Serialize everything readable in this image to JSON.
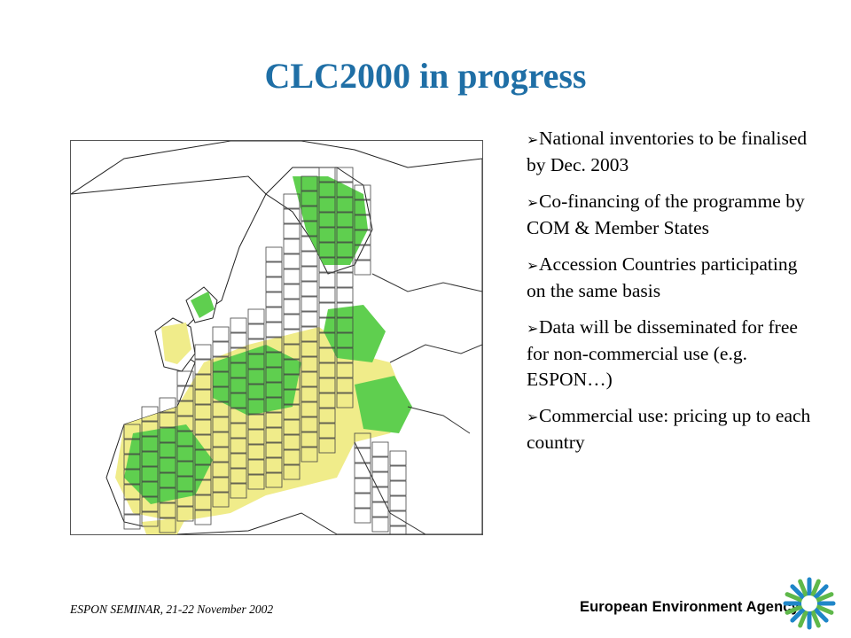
{
  "slide": {
    "title": "CLC2000 in progress",
    "bullets": [
      "National inventories to be finalised by Dec. 2003",
      "Co-financing of the programme by COM & Member States",
      "Accession Countries participating on the same basis",
      "Data will be disseminated for free for non-commercial use (e.g. ESPON…)",
      "Commercial use: pricing up to each country"
    ],
    "bullet_icon": "arrow-bullet-icon",
    "footer": "ESPON SEMINAR, 21-22 November 2002",
    "agency": "European Environment Agency"
  },
  "colors": {
    "title": "#1f6fa6",
    "land_fill": "#f0ec8a",
    "forest_fill": "#5fcf4f",
    "grid_lines": "#444444",
    "logo_blue": "#1f86c8",
    "logo_green": "#5fb84a"
  },
  "map": {
    "icon": "europe-coverage-map"
  }
}
